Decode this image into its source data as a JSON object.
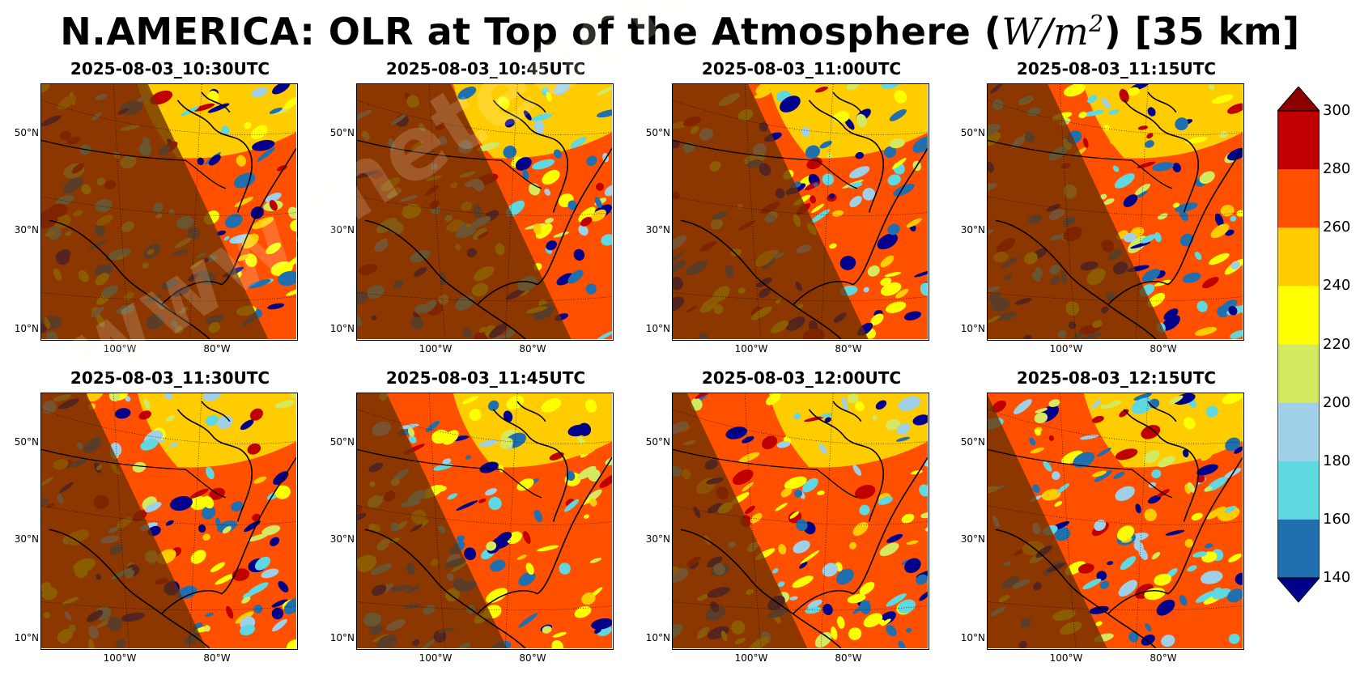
{
  "title": {
    "prefix": "N.AMERICA: OLR at Top of the Atmosphere (",
    "unit_w": "W",
    "unit_slash": "/",
    "unit_m": "m",
    "unit_exp": "2",
    "suffix": ") [35 km]"
  },
  "panels": [
    {
      "time": "2025-08-03_10:30UTC",
      "terminator_x": 0.7
    },
    {
      "time": "2025-08-03_10:45UTC",
      "terminator_x": 0.65
    },
    {
      "time": "2025-08-03_11:00UTC",
      "terminator_x": 0.58
    },
    {
      "time": "2025-08-03_11:15UTC",
      "terminator_x": 0.52
    },
    {
      "time": "2025-08-03_11:30UTC",
      "terminator_x": 0.46
    },
    {
      "time": "2025-08-03_11:45UTC",
      "terminator_x": 0.4
    },
    {
      "time": "2025-08-03_12:00UTC",
      "terminator_x": 0.34
    },
    {
      "time": "2025-08-03_12:15UTC",
      "terminator_x": 0.28
    }
  ],
  "lat_labels": [
    "50°N",
    "30°N",
    "10°N"
  ],
  "lon_labels": [
    "100°W",
    "80°W"
  ],
  "colorbar": {
    "ticks": [
      "300",
      "280",
      "260",
      "240",
      "220",
      "200",
      "180",
      "160",
      "140"
    ],
    "colors": [
      "#c00000",
      "#ff5000",
      "#ffcc00",
      "#ffff00",
      "#d4e860",
      "#a0d0e8",
      "#60d8e0",
      "#2070b0"
    ],
    "over_color": "#8b0000",
    "under_color": "#00008b"
  },
  "watermark": "www.meteociel.com"
}
